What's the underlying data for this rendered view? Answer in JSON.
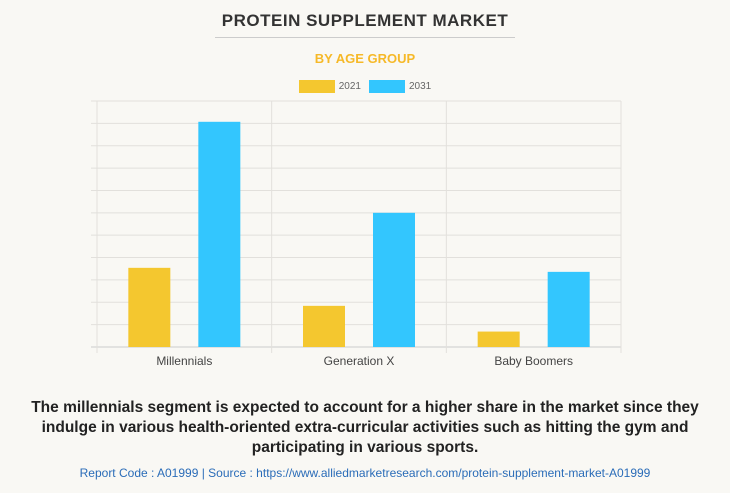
{
  "chart_data": {
    "type": "bar",
    "title": "PROTEIN SUPPLEMENT MARKET",
    "subtitle": "BY AGE GROUP",
    "categories": [
      "Millennials",
      "Generation X",
      "Baby Boomers"
    ],
    "series": [
      {
        "name": "2021",
        "color": "#f4c72f",
        "values": [
          3.54,
          1.84,
          0.69
        ]
      },
      {
        "name": "2031",
        "color": "#33c6fe",
        "values": [
          10.07,
          6.0,
          3.36
        ]
      }
    ],
    "ylim": [
      0,
      11
    ],
    "grid": true,
    "legend": "top-center",
    "xlabel": "",
    "ylabel": ""
  },
  "caption": "The millennials segment is expected to account for a higher share in the market since they indulge in various health-oriented extra-curricular activities such as hitting the gym and participating in various sports.",
  "footer": "Report Code : A01999  |  Source : https://www.alliedmarketresearch.com/protein-supplement-market-A01999"
}
